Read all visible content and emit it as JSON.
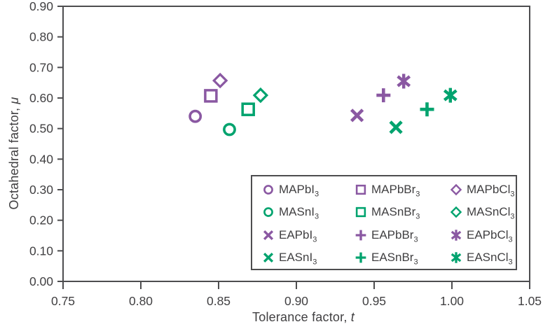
{
  "figure": {
    "background": "#ffffff",
    "axis_color": "#4d4d4f",
    "text_color": "#414042",
    "palette": {
      "purple": "#8a58a2",
      "green": "#00a36e"
    }
  },
  "chart_data": {
    "type": "scatter",
    "title": "",
    "xlabel": "Tolerance factor, t",
    "xlabel_prefix": "Tolerance factor, ",
    "xlabel_symbol": "t",
    "ylabel": "Octahedral factor, μ",
    "ylabel_prefix": "Octahedral factor, ",
    "ylabel_symbol": "μ",
    "xlim": [
      0.75,
      1.05
    ],
    "ylim": [
      0.0,
      0.9
    ],
    "xticks": [
      0.75,
      0.8,
      0.85,
      0.9,
      0.95,
      1.0,
      1.05
    ],
    "yticks": [
      0.0,
      0.1,
      0.2,
      0.3,
      0.4,
      0.5,
      0.6,
      0.7,
      0.8,
      0.9
    ],
    "grid": false,
    "legend_position": "inside lower-right, boxed, 3 columns x 4 rows",
    "series": [
      {
        "name": "MAPbI3",
        "marker": "open-circle",
        "color": "purple",
        "points": [
          [
            0.835,
            0.54
          ]
        ]
      },
      {
        "name": "MAPbBr3",
        "marker": "open-square",
        "color": "purple",
        "points": [
          [
            0.845,
            0.607
          ]
        ]
      },
      {
        "name": "MAPbCl3",
        "marker": "open-diamond",
        "color": "purple",
        "points": [
          [
            0.851,
            0.657
          ]
        ]
      },
      {
        "name": "MASnI3",
        "marker": "open-circle",
        "color": "green",
        "points": [
          [
            0.857,
            0.497
          ]
        ]
      },
      {
        "name": "MASnBr3",
        "marker": "open-square",
        "color": "green",
        "points": [
          [
            0.869,
            0.563
          ]
        ]
      },
      {
        "name": "MASnCl3",
        "marker": "open-diamond",
        "color": "green",
        "points": [
          [
            0.877,
            0.609
          ]
        ]
      },
      {
        "name": "EAPbI3",
        "marker": "x",
        "color": "purple",
        "points": [
          [
            0.939,
            0.543
          ]
        ]
      },
      {
        "name": "EAPbBr3",
        "marker": "plus",
        "color": "purple",
        "points": [
          [
            0.956,
            0.609
          ]
        ]
      },
      {
        "name": "EAPbCl3",
        "marker": "asterisk",
        "color": "purple",
        "points": [
          [
            0.969,
            0.655
          ]
        ]
      },
      {
        "name": "EASnI3",
        "marker": "x",
        "color": "green",
        "points": [
          [
            0.964,
            0.504
          ]
        ]
      },
      {
        "name": "EASnBr3",
        "marker": "plus",
        "color": "green",
        "points": [
          [
            0.984,
            0.563
          ]
        ]
      },
      {
        "name": "EASnCl3",
        "marker": "asterisk",
        "color": "green",
        "points": [
          [
            0.999,
            0.609
          ]
        ]
      }
    ]
  }
}
